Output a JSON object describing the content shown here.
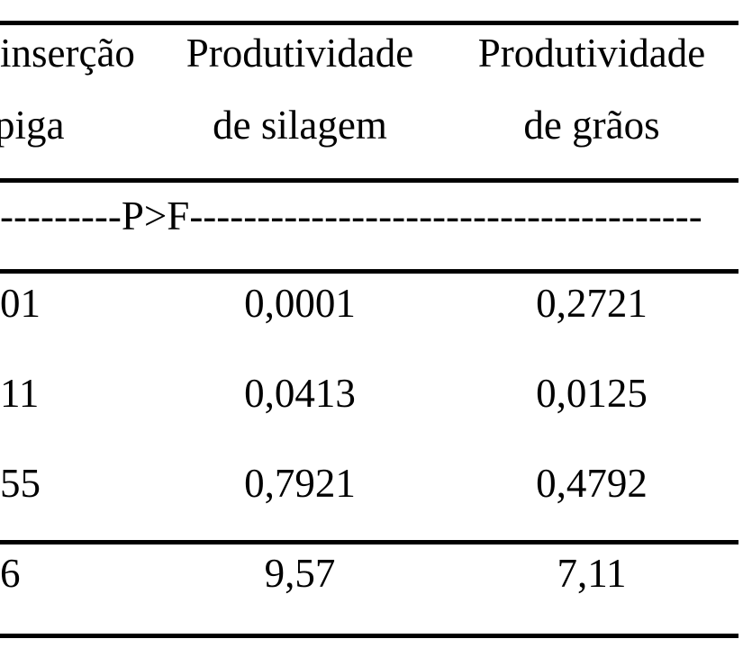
{
  "table": {
    "header": {
      "col1_line1": "inserção",
      "col1_line2": "piga",
      "col2_line1": "Produtividade",
      "col2_line2": "de silagem",
      "col3_line1": "Produtividade",
      "col3_line2": "de grãos"
    },
    "pf_row": {
      "dashes_left": "---------",
      "label": "P>F",
      "dashes_right": "--------------------------------------"
    },
    "rows": [
      {
        "col1": "01",
        "col2": "0,0001",
        "col3": "0,2721"
      },
      {
        "col1": "11",
        "col2": "0,0413",
        "col3": "0,0125"
      },
      {
        "col1": "55",
        "col2": "0,7921",
        "col3": "0,4792"
      },
      {
        "col1": "6",
        "col2": "9,57",
        "col3": "7,11"
      }
    ]
  },
  "colors": {
    "background": "#ffffff",
    "text": "#000000",
    "rule": "#000000"
  }
}
